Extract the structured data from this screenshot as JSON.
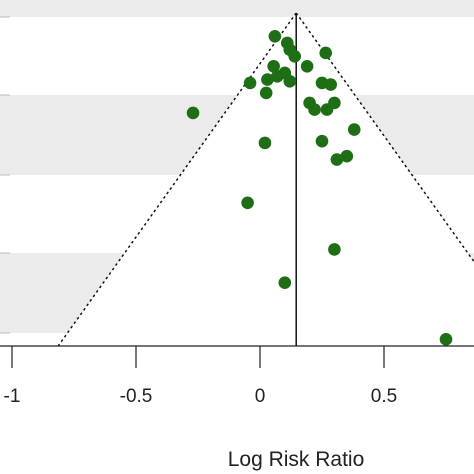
{
  "chart_data": {
    "type": "scatter",
    "subtype": "funnel-plot",
    "xlabel": "Log Risk Ratio",
    "x_ticks": [
      {
        "value": -1,
        "label": "-1"
      },
      {
        "value": -0.5,
        "label": "-0.5"
      },
      {
        "value": 0,
        "label": "0"
      },
      {
        "value": 0.5,
        "label": "0.5"
      }
    ],
    "xlim": [
      -1.05,
      0.8
    ],
    "ylim": [
      0,
      1
    ],
    "y_axis_inverted": true,
    "summary_effect": 0.146,
    "funnel_half_width_at_bottom": 0.96,
    "points": [
      {
        "x": 0.06,
        "y": 0.07
      },
      {
        "x": 0.11,
        "y": 0.09
      },
      {
        "x": 0.12,
        "y": 0.11
      },
      {
        "x": 0.14,
        "y": 0.13
      },
      {
        "x": 0.265,
        "y": 0.12
      },
      {
        "x": 0.055,
        "y": 0.16
      },
      {
        "x": 0.1,
        "y": 0.18
      },
      {
        "x": 0.19,
        "y": 0.16
      },
      {
        "x": 0.07,
        "y": 0.19
      },
      {
        "x": 0.03,
        "y": 0.2
      },
      {
        "x": 0.12,
        "y": 0.205
      },
      {
        "x": -0.04,
        "y": 0.21
      },
      {
        "x": 0.25,
        "y": 0.21
      },
      {
        "x": 0.285,
        "y": 0.215
      },
      {
        "x": 0.025,
        "y": 0.24
      },
      {
        "x": 0.2,
        "y": 0.27
      },
      {
        "x": 0.3,
        "y": 0.27
      },
      {
        "x": 0.22,
        "y": 0.29
      },
      {
        "x": 0.27,
        "y": 0.29
      },
      {
        "x": -0.27,
        "y": 0.3
      },
      {
        "x": 0.38,
        "y": 0.35
      },
      {
        "x": 0.02,
        "y": 0.39
      },
      {
        "x": 0.25,
        "y": 0.385
      },
      {
        "x": 0.35,
        "y": 0.43
      },
      {
        "x": 0.31,
        "y": 0.44
      },
      {
        "x": -0.05,
        "y": 0.57
      },
      {
        "x": 0.3,
        "y": 0.71
      },
      {
        "x": 0.1,
        "y": 0.81
      },
      {
        "x": 0.75,
        "y": 0.98
      }
    ],
    "grid": false,
    "point_color": "#1e6e16",
    "band_color": "#ebebeb"
  }
}
